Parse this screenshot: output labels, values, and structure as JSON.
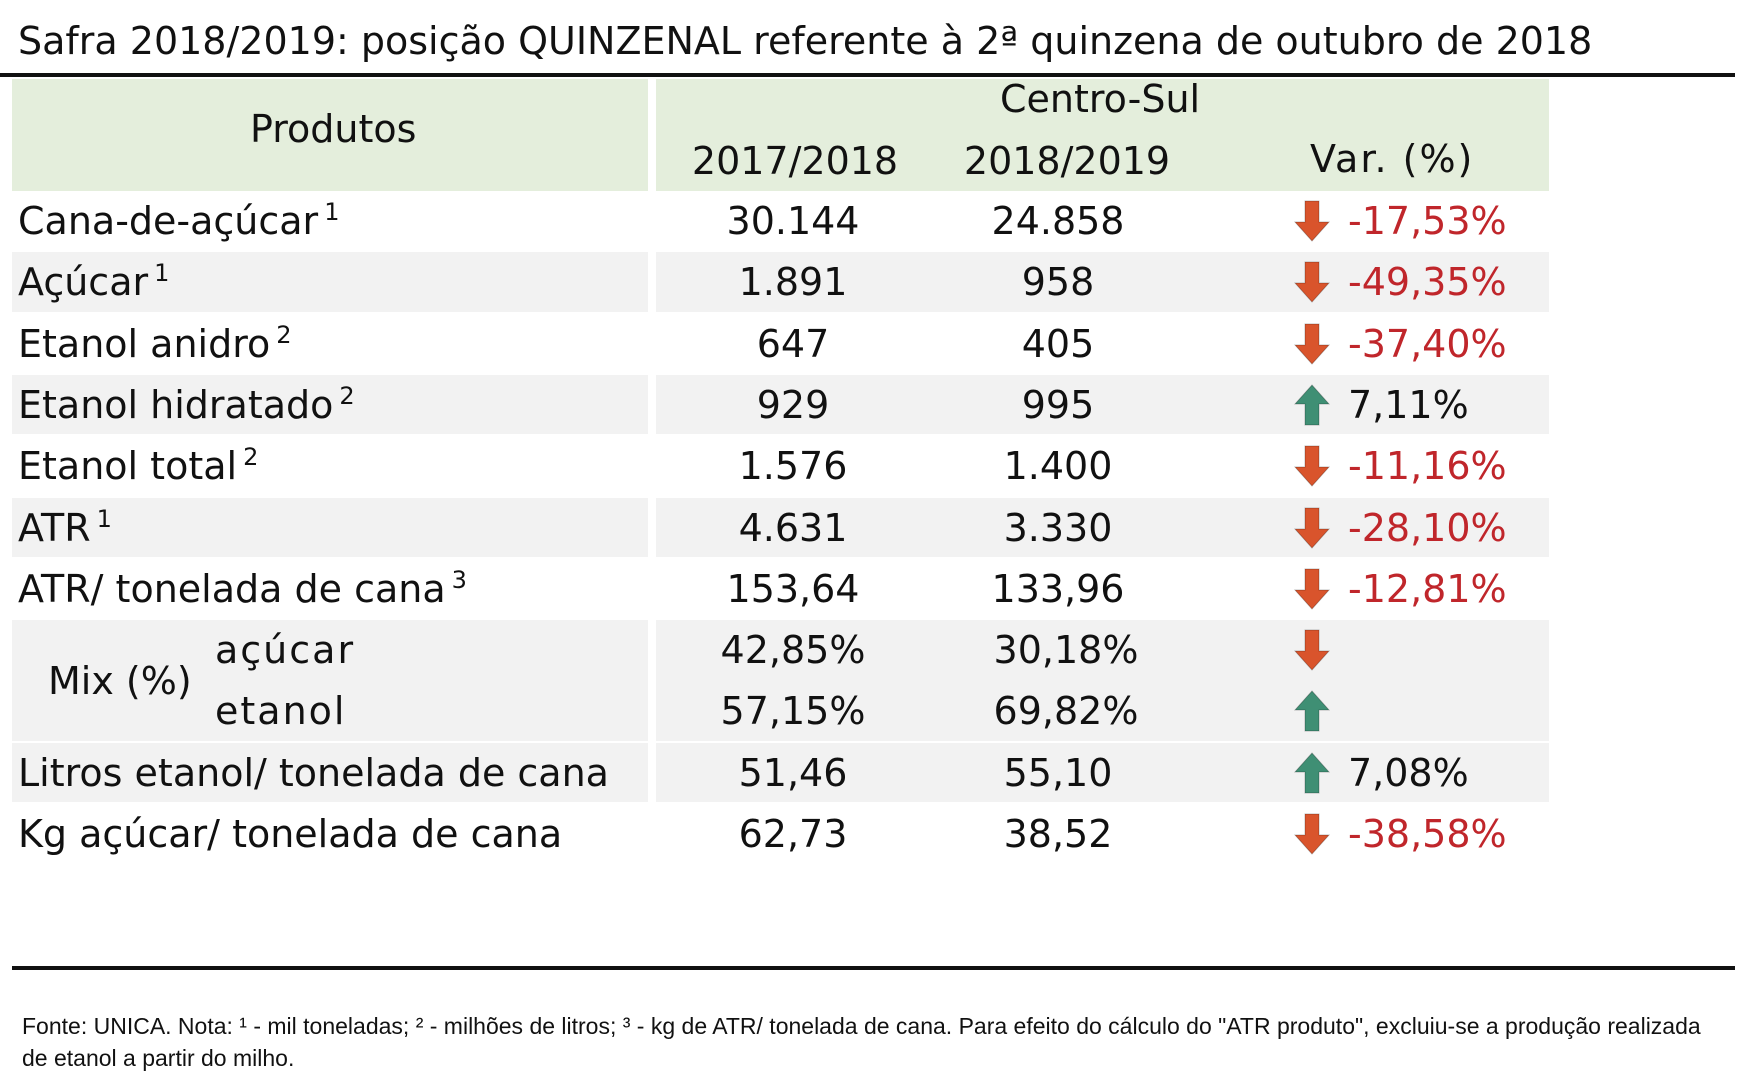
{
  "title": "Safra 2018/2019: posição QUINZENAL referente à 2ª quinzena de outubro de 2018",
  "header": {
    "produtos": "Produtos",
    "region": "Centro-Sul",
    "col1": "2017/2018",
    "col2": "2018/2019",
    "var": "Var. (%)"
  },
  "rows": [
    {
      "label": "Cana-de-açúcar",
      "note": "1",
      "v1": "30.144",
      "v2": "24.858",
      "dir": "down",
      "var": "-17,53%"
    },
    {
      "label": "Açúcar",
      "note": "1",
      "v1": "1.891",
      "v2": "958",
      "dir": "down",
      "var": "-49,35%"
    },
    {
      "label": "Etanol anidro",
      "note": "2",
      "v1": "647",
      "v2": "405",
      "dir": "down",
      "var": "-37,40%"
    },
    {
      "label": "Etanol hidratado",
      "note": "2",
      "v1": "929",
      "v2": "995",
      "dir": "up",
      "var": "7,11%"
    },
    {
      "label": "Etanol total",
      "note": "2",
      "v1": "1.576",
      "v2": "1.400",
      "dir": "down",
      "var": "-11,16%"
    },
    {
      "label": "ATR",
      "note": "1",
      "v1": "4.631",
      "v2": "3.330",
      "dir": "down",
      "var": "-28,10%"
    },
    {
      "label": "ATR/ tonelada de cana",
      "note": "3",
      "v1": "153,64",
      "v2": "133,96",
      "dir": "down",
      "var": "-12,81%"
    }
  ],
  "mix": {
    "label": "Mix (%)",
    "rows": [
      {
        "label": "açúcar",
        "v1": "42,85%",
        "v2": "30,18%",
        "dir": "down"
      },
      {
        "label": "etanol",
        "v1": "57,15%",
        "v2": "69,82%",
        "dir": "up"
      }
    ]
  },
  "bottom_rows": [
    {
      "label": "Litros etanol/ tonelada de cana",
      "v1": "51,46",
      "v2": "55,10",
      "dir": "up",
      "var": "7,08%"
    },
    {
      "label": "Kg açúcar/ tonelada de cana",
      "v1": "62,73",
      "v2": "38,52",
      "dir": "down",
      "var": "-38,58%"
    }
  ],
  "footer": "Fonte: UNICA. Nota: ¹ - mil toneladas; ² - milhões de litros; ³ - kg de ATR/ tonelada de cana. Para efeito do cálculo do \"ATR produto\", excluiu-se a produção realizada de etanol a partir do milho.",
  "colors": {
    "header_bg": "#e4eedc",
    "band_bg": "#f2f2f2",
    "negative": "#c0262b",
    "arrow_down": "#d9542c",
    "arrow_up": "#3f8f74"
  }
}
